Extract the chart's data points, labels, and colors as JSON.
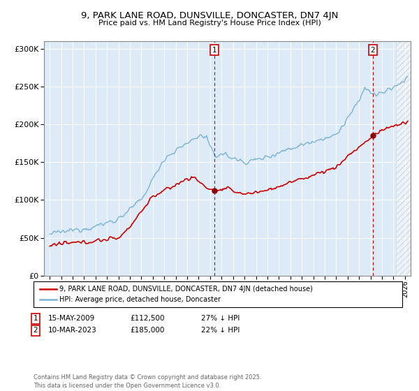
{
  "title": "9, PARK LANE ROAD, DUNSVILLE, DONCASTER, DN7 4JN",
  "subtitle": "Price paid vs. HM Land Registry's House Price Index (HPI)",
  "ytick_values": [
    0,
    50000,
    100000,
    150000,
    200000,
    250000,
    300000
  ],
  "ylim": [
    0,
    310000
  ],
  "xlim_start": 1994.5,
  "xlim_end": 2026.5,
  "hpi_color": "#7ab3d8",
  "price_color": "#cc0000",
  "background_color": "#ddeaf7",
  "grid_color": "#ffffff",
  "marker1_x": 2009.37,
  "marker1_y": 112500,
  "marker2_x": 2023.19,
  "marker2_y": 185000,
  "legend_line1": "9, PARK LANE ROAD, DUNSVILLE, DONCASTER, DN7 4JN (detached house)",
  "legend_line2": "HPI: Average price, detached house, Doncaster",
  "footer": "Contains HM Land Registry data © Crown copyright and database right 2025.\nThis data is licensed under the Open Government Licence v3.0.",
  "hatch_after_x": 2025.25
}
